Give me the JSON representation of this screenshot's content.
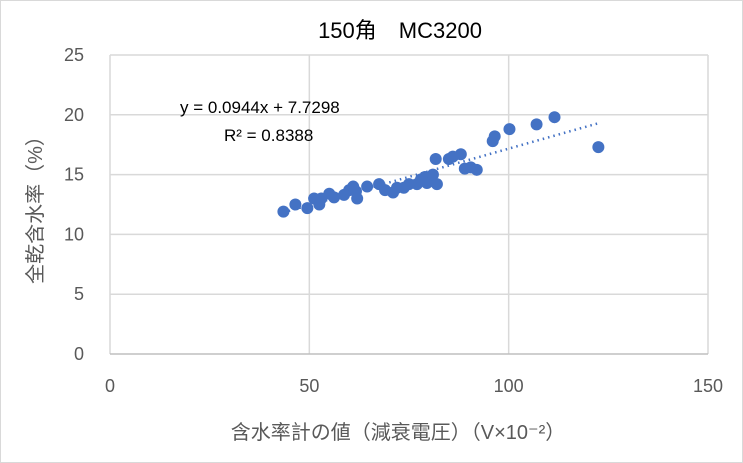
{
  "chart_data": {
    "type": "scatter",
    "title": "150角　MC3200",
    "xlabel": "含水率計の値（減衰電圧）（V×10⁻²）",
    "ylabel": "全乾含水率（%）",
    "xlim": [
      0,
      150
    ],
    "ylim": [
      0,
      25
    ],
    "xticks": [
      "0",
      "50",
      "100",
      "150"
    ],
    "yticks": [
      "0",
      "5",
      "10",
      "15",
      "20",
      "25"
    ],
    "grid": true,
    "marker_color": "#4472C4",
    "points": [
      [
        43.5,
        11.9
      ],
      [
        46.5,
        12.5
      ],
      [
        49.5,
        12.2
      ],
      [
        51.2,
        13.0
      ],
      [
        52.5,
        12.5
      ],
      [
        53,
        13.0
      ],
      [
        55,
        13.4
      ],
      [
        56.2,
        13.1
      ],
      [
        58.7,
        13.3
      ],
      [
        60,
        13.7
      ],
      [
        61,
        14.0
      ],
      [
        61.7,
        13.6
      ],
      [
        62,
        13.0
      ],
      [
        64.5,
        14.0
      ],
      [
        67.5,
        14.2
      ],
      [
        69,
        13.7
      ],
      [
        71,
        13.5
      ],
      [
        72,
        13.9
      ],
      [
        73.7,
        13.9
      ],
      [
        75,
        14.2
      ],
      [
        77,
        14.2
      ],
      [
        78,
        14.6
      ],
      [
        79,
        14.8
      ],
      [
        79.5,
        14.3
      ],
      [
        81,
        15.0
      ],
      [
        81.7,
        16.3
      ],
      [
        82,
        14.2
      ],
      [
        85,
        16.3
      ],
      [
        86,
        16.5
      ],
      [
        88,
        16.7
      ],
      [
        89,
        15.5
      ],
      [
        90.5,
        15.6
      ],
      [
        92,
        15.4
      ],
      [
        96,
        17.8
      ],
      [
        96.5,
        18.2
      ],
      [
        100.2,
        18.8
      ],
      [
        107,
        19.2
      ],
      [
        111.5,
        19.8
      ],
      [
        122.5,
        17.3
      ]
    ],
    "trendline": {
      "type": "linear",
      "slope": 0.0944,
      "intercept": 7.7298,
      "equation": "y = 0.0944x + 7.7298",
      "r2": "R² = 0.8388"
    }
  }
}
